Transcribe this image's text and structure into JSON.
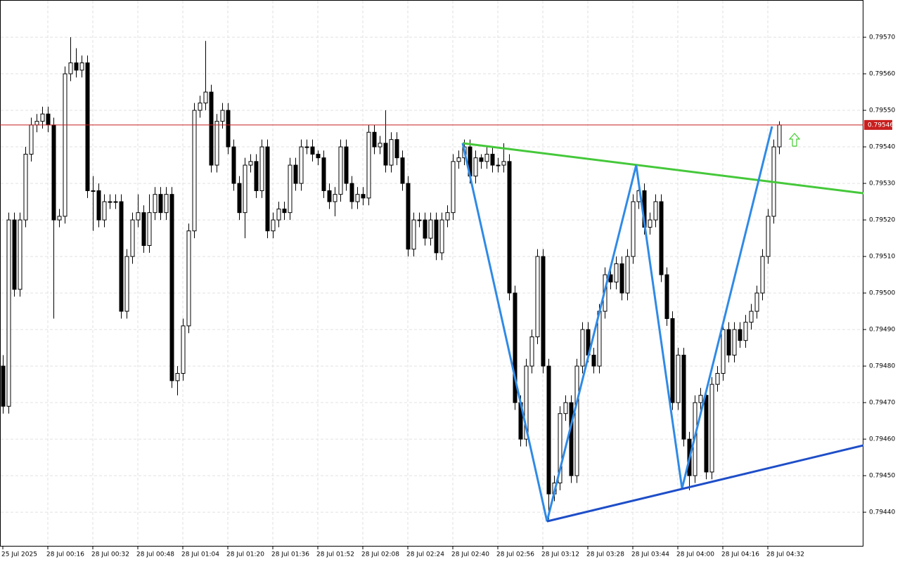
{
  "chart_data": {
    "type": "candlestick",
    "bull_color": "#ffffff",
    "bear_color": "#000000",
    "grid": true,
    "ylim": [
      0.794306,
      0.795802
    ],
    "yticks": [
      {
        "value": 0.7957,
        "label": "0.79570"
      },
      {
        "value": 0.7956,
        "label": "0.79560"
      },
      {
        "value": 0.7955,
        "label": "0.79550"
      },
      {
        "value": 0.7954,
        "label": "0.79540"
      },
      {
        "value": 0.7953,
        "label": "0.79530"
      },
      {
        "value": 0.7952,
        "label": "0.79520"
      },
      {
        "value": 0.7951,
        "label": "0.79510"
      },
      {
        "value": 0.795,
        "label": "0.79500"
      },
      {
        "value": 0.7949,
        "label": "0.79490"
      },
      {
        "value": 0.7948,
        "label": "0.79480"
      },
      {
        "value": 0.7947,
        "label": "0.79470"
      },
      {
        "value": 0.7946,
        "label": "0.79460"
      },
      {
        "value": 0.7945,
        "label": "0.79450"
      },
      {
        "value": 0.7944,
        "label": "0.79440"
      }
    ],
    "x_labels": [
      "25 Jul 2025",
      "28 Jul 00:16",
      "28 Jul 00:32",
      "28 Jul 00:48",
      "28 Jul 01:04",
      "28 Jul 01:20",
      "28 Jul 01:36",
      "28 Jul 01:52",
      "28 Jul 02:08",
      "28 Jul 02:24",
      "28 Jul 02:40",
      "28 Jul 02:56",
      "28 Jul 03:12",
      "28 Jul 03:28",
      "28 Jul 03:44",
      "28 Jul 04:00",
      "28 Jul 04:16",
      "28 Jul 04:32"
    ],
    "current_price": 0.79546,
    "current_price_color": "#c81e1e",
    "lines": [
      {
        "color": "#45c83a",
        "points": [
          [
            81.75,
            0.79541
          ],
          [
            153,
            0.795273
          ]
        ]
      },
      {
        "color": "#2f8ae6",
        "points": [
          [
            81.75,
            0.79541
          ],
          [
            96.75,
            0.794375
          ],
          [
            112.6,
            0.79535
          ],
          [
            120.75,
            0.794465
          ],
          [
            136.75,
            0.795456
          ]
        ]
      },
      {
        "color": "#1e4ec8",
        "points": [
          [
            96.75,
            0.794375
          ],
          [
            153,
            0.794583
          ]
        ]
      }
    ],
    "candles": [
      [
        0.7948,
        0.79483,
        0.79467,
        0.79469
      ],
      [
        0.79469,
        0.79522,
        0.79467,
        0.7952
      ],
      [
        0.7952,
        0.79522,
        0.79499,
        0.79501
      ],
      [
        0.79501,
        0.79522,
        0.79499,
        0.7952
      ],
      [
        0.7952,
        0.7954,
        0.79518,
        0.79538
      ],
      [
        0.79538,
        0.79548,
        0.79536,
        0.79546
      ],
      [
        0.79546,
        0.79549,
        0.79544,
        0.79547
      ],
      [
        0.79547,
        0.79551,
        0.79545,
        0.79549
      ],
      [
        0.79549,
        0.79551,
        0.79544,
        0.79546
      ],
      [
        0.79546,
        0.79548,
        0.79493,
        0.7952
      ],
      [
        0.7952,
        0.79523,
        0.79518,
        0.79521
      ],
      [
        0.79521,
        0.79562,
        0.79519,
        0.7956
      ],
      [
        0.7956,
        0.7957,
        0.79558,
        0.79563
      ],
      [
        0.79563,
        0.79567,
        0.79559,
        0.79561
      ],
      [
        0.79561,
        0.79565,
        0.79559,
        0.79563
      ],
      [
        0.79563,
        0.79565,
        0.79526,
        0.79528
      ],
      [
        0.79528,
        0.79532,
        0.79517,
        0.79528
      ],
      [
        0.79528,
        0.7953,
        0.79518,
        0.7952
      ],
      [
        0.7952,
        0.79527,
        0.79518,
        0.79525
      ],
      [
        0.79525,
        0.79527,
        0.79523,
        0.79525
      ],
      [
        0.79525,
        0.79527,
        0.79523,
        0.79525
      ],
      [
        0.79525,
        0.79527,
        0.79493,
        0.79495
      ],
      [
        0.79495,
        0.79512,
        0.79493,
        0.7951
      ],
      [
        0.7951,
        0.79522,
        0.79508,
        0.7952
      ],
      [
        0.7952,
        0.79527,
        0.79518,
        0.79522
      ],
      [
        0.79522,
        0.79524,
        0.79511,
        0.79513
      ],
      [
        0.79513,
        0.79527,
        0.79511,
        0.79522
      ],
      [
        0.79522,
        0.79529,
        0.7952,
        0.79527
      ],
      [
        0.79527,
        0.79529,
        0.7952,
        0.79522
      ],
      [
        0.79522,
        0.79529,
        0.7952,
        0.79527
      ],
      [
        0.79527,
        0.79529,
        0.79474,
        0.79476
      ],
      [
        0.79476,
        0.7948,
        0.79472,
        0.79478
      ],
      [
        0.79478,
        0.79493,
        0.79476,
        0.79491
      ],
      [
        0.79491,
        0.79519,
        0.79489,
        0.79517
      ],
      [
        0.79517,
        0.79552,
        0.79515,
        0.7955
      ],
      [
        0.7955,
        0.79554,
        0.79548,
        0.79552
      ],
      [
        0.79552,
        0.79569,
        0.7955,
        0.79555
      ],
      [
        0.79555,
        0.79557,
        0.79533,
        0.79535
      ],
      [
        0.79535,
        0.79549,
        0.79533,
        0.79547
      ],
      [
        0.79547,
        0.79552,
        0.79545,
        0.7955
      ],
      [
        0.7955,
        0.79552,
        0.79538,
        0.7954
      ],
      [
        0.7954,
        0.79542,
        0.79528,
        0.7953
      ],
      [
        0.7953,
        0.79532,
        0.7952,
        0.79522
      ],
      [
        0.79522,
        0.79537,
        0.79515,
        0.79535
      ],
      [
        0.79535,
        0.79538,
        0.79533,
        0.79536
      ],
      [
        0.79536,
        0.79538,
        0.79526,
        0.79528
      ],
      [
        0.79528,
        0.79542,
        0.79526,
        0.7954
      ],
      [
        0.7954,
        0.79542,
        0.79515,
        0.79517
      ],
      [
        0.79517,
        0.79522,
        0.79515,
        0.7952
      ],
      [
        0.7952,
        0.79525,
        0.79518,
        0.79523
      ],
      [
        0.79523,
        0.79525,
        0.7952,
        0.79522
      ],
      [
        0.79522,
        0.79537,
        0.7952,
        0.79535
      ],
      [
        0.79535,
        0.79537,
        0.79528,
        0.7953
      ],
      [
        0.7953,
        0.79542,
        0.79528,
        0.7954
      ],
      [
        0.7954,
        0.79542,
        0.79538,
        0.7954
      ],
      [
        0.7954,
        0.79542,
        0.79536,
        0.79538
      ],
      [
        0.79538,
        0.79539,
        0.79535,
        0.79537
      ],
      [
        0.79537,
        0.79539,
        0.79526,
        0.79528
      ],
      [
        0.79528,
        0.7953,
        0.79523,
        0.79525
      ],
      [
        0.79525,
        0.79529,
        0.79521,
        0.79527
      ],
      [
        0.79527,
        0.79542,
        0.79525,
        0.7954
      ],
      [
        0.7954,
        0.79542,
        0.79528,
        0.7953
      ],
      [
        0.7953,
        0.79532,
        0.79523,
        0.79525
      ],
      [
        0.79525,
        0.79529,
        0.79523,
        0.79527
      ],
      [
        0.79527,
        0.79529,
        0.79524,
        0.79526
      ],
      [
        0.79526,
        0.79546,
        0.79524,
        0.79544
      ],
      [
        0.79544,
        0.79546,
        0.79538,
        0.7954
      ],
      [
        0.7954,
        0.79543,
        0.79538,
        0.79541
      ],
      [
        0.79541,
        0.7955,
        0.79533,
        0.79535
      ],
      [
        0.79535,
        0.79544,
        0.79533,
        0.79542
      ],
      [
        0.79542,
        0.79544,
        0.79535,
        0.79537
      ],
      [
        0.79537,
        0.79539,
        0.79528,
        0.7953
      ],
      [
        0.7953,
        0.79532,
        0.7951,
        0.79512
      ],
      [
        0.79512,
        0.79522,
        0.7951,
        0.7952
      ],
      [
        0.7952,
        0.79522,
        0.79518,
        0.7952
      ],
      [
        0.7952,
        0.79522,
        0.79513,
        0.79515
      ],
      [
        0.79515,
        0.79522,
        0.79513,
        0.7952
      ],
      [
        0.7952,
        0.79522,
        0.79509,
        0.79511
      ],
      [
        0.79511,
        0.79522,
        0.79509,
        0.7952
      ],
      [
        0.7952,
        0.79524,
        0.79518,
        0.79522
      ],
      [
        0.79522,
        0.79538,
        0.7952,
        0.79536
      ],
      [
        0.79536,
        0.79539,
        0.79534,
        0.79537
      ],
      [
        0.79537,
        0.79542,
        0.79535,
        0.7954
      ],
      [
        0.7954,
        0.79542,
        0.7953,
        0.79532
      ],
      [
        0.79532,
        0.79539,
        0.7953,
        0.79537
      ],
      [
        0.79537,
        0.79538,
        0.79534,
        0.79536
      ],
      [
        0.79536,
        0.7954,
        0.79534,
        0.79538
      ],
      [
        0.79538,
        0.7954,
        0.79533,
        0.79535
      ],
      [
        0.79535,
        0.79537,
        0.79533,
        0.79535
      ],
      [
        0.79535,
        0.79541,
        0.79533,
        0.79536
      ],
      [
        0.79536,
        0.79538,
        0.79498,
        0.795
      ],
      [
        0.795,
        0.79502,
        0.79468,
        0.7947
      ],
      [
        0.7947,
        0.79472,
        0.79458,
        0.7946
      ],
      [
        0.7946,
        0.79482,
        0.79458,
        0.7948
      ],
      [
        0.7948,
        0.7949,
        0.79478,
        0.79488
      ],
      [
        0.79488,
        0.79512,
        0.79486,
        0.7951
      ],
      [
        0.7951,
        0.79512,
        0.79478,
        0.7948
      ],
      [
        0.7948,
        0.79482,
        0.79438,
        0.79445
      ],
      [
        0.79445,
        0.7945,
        0.79443,
        0.79448
      ],
      [
        0.79448,
        0.79469,
        0.79446,
        0.79467
      ],
      [
        0.79467,
        0.79472,
        0.79465,
        0.7947
      ],
      [
        0.7947,
        0.79472,
        0.79448,
        0.7945
      ],
      [
        0.7945,
        0.79482,
        0.79448,
        0.7948
      ],
      [
        0.7948,
        0.79492,
        0.79478,
        0.7949
      ],
      [
        0.7949,
        0.79492,
        0.79481,
        0.79483
      ],
      [
        0.79483,
        0.79485,
        0.79478,
        0.7948
      ],
      [
        0.7948,
        0.79497,
        0.79478,
        0.79495
      ],
      [
        0.79495,
        0.79507,
        0.79493,
        0.79505
      ],
      [
        0.79505,
        0.79507,
        0.79501,
        0.79503
      ],
      [
        0.79503,
        0.7951,
        0.79501,
        0.79508
      ],
      [
        0.79508,
        0.7951,
        0.79498,
        0.795
      ],
      [
        0.795,
        0.79512,
        0.79498,
        0.7951
      ],
      [
        0.7951,
        0.79527,
        0.79508,
        0.79525
      ],
      [
        0.79525,
        0.7953,
        0.79523,
        0.79528
      ],
      [
        0.79528,
        0.7953,
        0.79516,
        0.79518
      ],
      [
        0.79518,
        0.79522,
        0.79516,
        0.7952
      ],
      [
        0.7952,
        0.79527,
        0.79518,
        0.79525
      ],
      [
        0.79525,
        0.79527,
        0.79503,
        0.79505
      ],
      [
        0.79505,
        0.79507,
        0.79491,
        0.79493
      ],
      [
        0.79493,
        0.79495,
        0.79468,
        0.7947
      ],
      [
        0.7947,
        0.79485,
        0.79468,
        0.79483
      ],
      [
        0.79483,
        0.79485,
        0.79458,
        0.7946
      ],
      [
        0.7946,
        0.79462,
        0.79446,
        0.7945
      ],
      [
        0.7945,
        0.79472,
        0.79448,
        0.7947
      ],
      [
        0.7947,
        0.79474,
        0.79468,
        0.79472
      ],
      [
        0.79472,
        0.79474,
        0.79449,
        0.79451
      ],
      [
        0.79451,
        0.79477,
        0.79449,
        0.79475
      ],
      [
        0.79475,
        0.7948,
        0.79473,
        0.79478
      ],
      [
        0.79478,
        0.79492,
        0.79476,
        0.7949
      ],
      [
        0.7949,
        0.79492,
        0.79481,
        0.79483
      ],
      [
        0.79483,
        0.79492,
        0.79481,
        0.7949
      ],
      [
        0.7949,
        0.79492,
        0.79485,
        0.79487
      ],
      [
        0.79487,
        0.79494,
        0.79485,
        0.79492
      ],
      [
        0.79492,
        0.79497,
        0.7949,
        0.79495
      ],
      [
        0.79495,
        0.79502,
        0.79493,
        0.795
      ],
      [
        0.795,
        0.79512,
        0.79498,
        0.7951
      ],
      [
        0.7951,
        0.79523,
        0.79508,
        0.79521
      ],
      [
        0.79521,
        0.79542,
        0.79519,
        0.7954
      ],
      [
        0.7954,
        0.79547,
        0.79538,
        0.79546
      ]
    ]
  }
}
